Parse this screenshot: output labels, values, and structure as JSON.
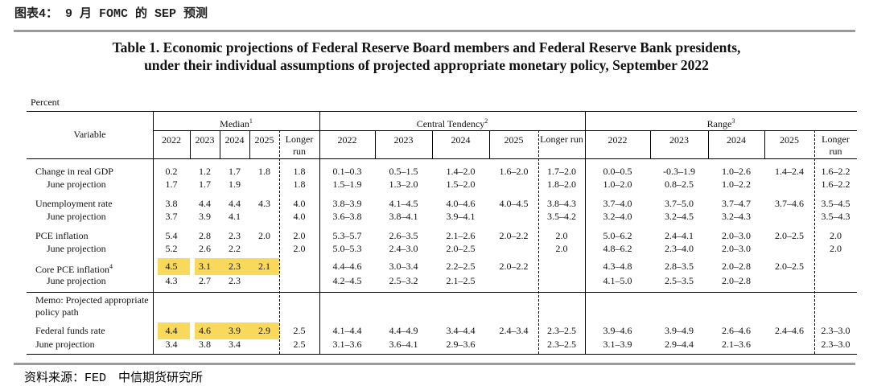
{
  "header": {
    "figure_label": "图表4： 9 月 FOMC 的 SEP 预测"
  },
  "table": {
    "title_lines": [
      "Table 1. Economic projections of Federal Reserve Board members and Federal Reserve Bank presidents,",
      "under their individual assumptions of projected appropriate monetary policy, September 2022"
    ],
    "unit": "Percent",
    "variable_header": "Variable",
    "groups": [
      {
        "key": "median",
        "label": "Median",
        "note": "1"
      },
      {
        "key": "central_tendency",
        "label": "Central Tendency",
        "note": "2"
      },
      {
        "key": "range",
        "label": "Range",
        "note": "3"
      }
    ],
    "columns": [
      "2022",
      "2023",
      "2024",
      "2025",
      "Longer run"
    ],
    "blocks": [
      {
        "rows": [
          {
            "label": "Change in real GDP",
            "median": [
              "0.2",
              "1.2",
              "1.7",
              "1.8",
              "1.8"
            ],
            "central_tendency": [
              "0.1–0.3",
              "0.5–1.5",
              "1.4–2.0",
              "1.6–2.0",
              "1.7–2.0"
            ],
            "range": [
              "0.0–0.5",
              "-0.3–1.9",
              "1.0–2.6",
              "1.4–2.4",
              "1.6–2.2"
            ]
          },
          {
            "label": "June projection",
            "median": [
              "1.7",
              "1.7",
              "1.9",
              null,
              "1.8"
            ],
            "central_tendency": [
              "1.5–1.9",
              "1.3–2.0",
              "1.5–2.0",
              null,
              "1.8–2.0"
            ],
            "range": [
              "1.0–2.0",
              "0.8–2.5",
              "1.0–2.2",
              null,
              "1.6–2.2"
            ]
          },
          {
            "label": "Unemployment rate",
            "median": [
              "3.8",
              "4.4",
              "4.4",
              "4.3",
              "4.0"
            ],
            "central_tendency": [
              "3.8–3.9",
              "4.1–4.5",
              "4.0–4.6",
              "4.0–4.5",
              "3.8–4.3"
            ],
            "range": [
              "3.7–4.0",
              "3.7–5.0",
              "3.7–4.7",
              "3.7–4.6",
              "3.5–4.5"
            ]
          },
          {
            "label": "June projection",
            "median": [
              "3.7",
              "3.9",
              "4.1",
              null,
              "4.0"
            ],
            "central_tendency": [
              "3.6–3.8",
              "3.8–4.1",
              "3.9–4.1",
              null,
              "3.5–4.2"
            ],
            "range": [
              "3.2–4.0",
              "3.2–4.5",
              "3.2–4.3",
              null,
              "3.5–4.3"
            ]
          },
          {
            "label": "PCE inflation",
            "median": [
              "5.4",
              "2.8",
              "2.3",
              "2.0",
              "2.0"
            ],
            "central_tendency": [
              "5.3–5.7",
              "2.6–3.5",
              "2.1–2.6",
              "2.0–2.2",
              "2.0"
            ],
            "range": [
              "5.0–6.2",
              "2.4–4.1",
              "2.0–3.0",
              "2.0–2.5",
              "2.0"
            ]
          },
          {
            "label": "June projection",
            "median": [
              "5.2",
              "2.6",
              "2.2",
              null,
              "2.0"
            ],
            "central_tendency": [
              "5.0–5.3",
              "2.4–3.0",
              "2.0–2.5",
              null,
              "2.0"
            ],
            "range": [
              "4.8–6.2",
              "2.3–4.0",
              "2.0–3.0",
              null,
              "2.0"
            ]
          },
          {
            "label": "Core PCE inflation",
            "note": "4",
            "highlight": true,
            "median": [
              "4.5",
              "3.1",
              "2.3",
              "2.1",
              null
            ],
            "central_tendency": [
              "4.4–4.6",
              "3.0–3.4",
              "2.2–2.5",
              "2.0–2.2",
              null
            ],
            "range": [
              "4.3–4.8",
              "2.8–3.5",
              "2.0–2.8",
              "2.0–2.5",
              null
            ]
          },
          {
            "label": "June projection",
            "median": [
              "4.3",
              "2.7",
              "2.3",
              null,
              null
            ],
            "central_tendency": [
              "4.2–4.5",
              "2.5–3.2",
              "2.1–2.5",
              null,
              null
            ],
            "range": [
              "4.1–5.0",
              "2.5–3.5",
              "2.0–2.8",
              null,
              null
            ]
          }
        ]
      },
      {
        "rows": [
          {
            "label": "Memo: Projected appropriate policy path"
          },
          {
            "label": "Federal funds rate",
            "highlight": true,
            "median": [
              "4.4",
              "4.6",
              "3.9",
              "2.9",
              "2.5"
            ],
            "central_tendency": [
              "4.1–4.4",
              "4.4–4.9",
              "3.4–4.4",
              "2.4–3.4",
              "2.3–2.5"
            ],
            "range": [
              "3.9–4.6",
              "3.9–4.9",
              "2.6–4.6",
              "2.4–4.6",
              "2.3–3.0"
            ]
          },
          {
            "label": "June projection",
            "median": [
              "3.4",
              "3.8",
              "3.4",
              null,
              "2.5"
            ],
            "central_tendency": [
              "3.1–3.6",
              "3.6–4.1",
              "2.9–3.6",
              null,
              "2.3–2.5"
            ],
            "range": [
              "3.1–3.9",
              "2.9–4.4",
              "2.1–3.6",
              null,
              "2.3–3.0"
            ]
          }
        ]
      }
    ]
  },
  "footer": {
    "source": "资料来源：FED　中信期货研究所"
  }
}
